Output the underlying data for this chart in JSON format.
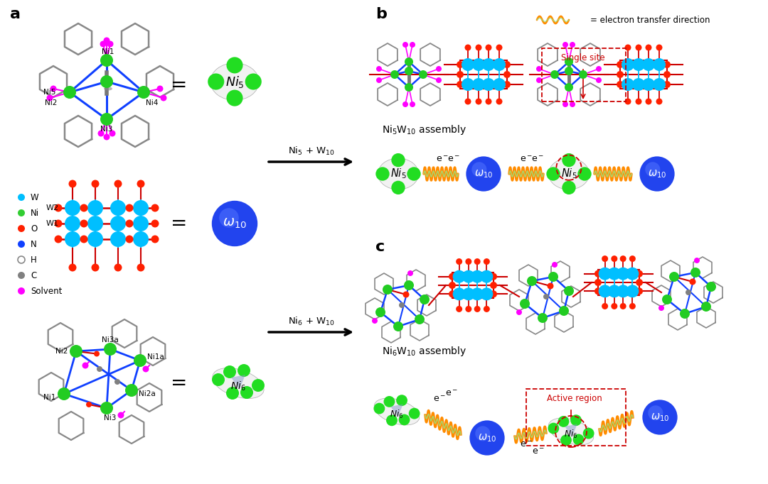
{
  "background_color": "#ffffff",
  "panel_label_fontsize": 16,
  "panel_label_weight": "bold",
  "legend_items": [
    {
      "label": "W",
      "color": "#00BFFF",
      "open": false
    },
    {
      "label": "Ni",
      "color": "#32CD32",
      "open": false
    },
    {
      "label": "O",
      "color": "#FF2000",
      "open": false
    },
    {
      "label": "N",
      "color": "#1040FF",
      "open": false
    },
    {
      "label": "H",
      "color": "#CCCCCC",
      "open": true
    },
    {
      "label": "C",
      "color": "#808080",
      "open": false
    },
    {
      "label": "Solvent",
      "color": "#FF00FF",
      "open": false
    }
  ],
  "ni5_body_color": "#E8E8E8",
  "ni5_dot_color": "#22DD22",
  "w10_body_color": "#2244EE",
  "w10_highlight_color": "#4488FF",
  "ni6_body_color": "#E8E8E8",
  "ni6_dot_color": "#22DD22",
  "spring_outer": "#FF8C00",
  "spring_inner": "#90EE90",
  "blue_bond": "#1040FF",
  "gray_ring": "#888888",
  "red_bond": "#CC0000",
  "green_ni": "#22CC22",
  "cyan_w": "#00BFFF",
  "magenta": "#FF00FF",
  "black": "#000000",
  "dashed_red": "#CC0000"
}
